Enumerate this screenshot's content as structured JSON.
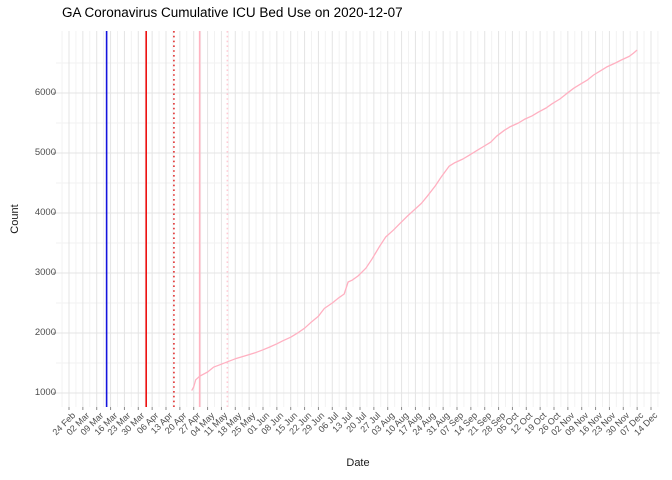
{
  "chart_data": {
    "type": "line",
    "title": "GA Coronavirus Cumulative ICU Bed Use on 2020-12-07",
    "xlabel": "Date",
    "ylabel": "Count",
    "grid": true,
    "legend": false,
    "x_range": [
      "2020-02-24",
      "2020-12-14"
    ],
    "x_tick_interval_days": 7,
    "x_tick_labels": [
      "24 Feb",
      "02 Mar",
      "09 Mar",
      "16 Mar",
      "23 Mar",
      "30 Mar",
      "06 Apr",
      "13 Apr",
      "20 Apr",
      "27 Apr",
      "04 May",
      "11 May",
      "18 May",
      "25 May",
      "01 Jun",
      "08 Jun",
      "15 Jun",
      "22 Jun",
      "29 Jun",
      "06 Jul",
      "13 Jul",
      "20 Jul",
      "27 Jul",
      "03 Aug",
      "10 Aug",
      "17 Aug",
      "24 Aug",
      "31 Aug",
      "07 Sep",
      "14 Sep",
      "21 Sep",
      "28 Sep",
      "05 Oct",
      "12 Oct",
      "19 Oct",
      "26 Oct",
      "02 Nov",
      "09 Nov",
      "16 Nov",
      "23 Nov",
      "30 Nov",
      "07 Dec",
      "14 Dec"
    ],
    "y_ticks": [
      1000,
      2000,
      3000,
      4000,
      5000,
      6000
    ],
    "y_minor_ticks": [
      1500,
      2500,
      3500,
      4500,
      5500,
      6500
    ],
    "ylim": [
      767,
      7033
    ],
    "vlines": [
      {
        "id": "vline-blue-solid",
        "date": "2020-03-14",
        "color": "#1414dd",
        "style": "solid"
      },
      {
        "id": "vline-red-solid",
        "date": "2020-04-03",
        "color": "#ee1111",
        "style": "solid"
      },
      {
        "id": "vline-red-dotted",
        "date": "2020-04-17",
        "color": "#e03030",
        "style": "dotted"
      },
      {
        "id": "vline-pink-solid",
        "date": "2020-04-30",
        "color": "#ffb3c1",
        "style": "solid"
      },
      {
        "id": "vline-pink-dotted",
        "date": "2020-05-14",
        "color": "#ffc9d3",
        "style": "dotted"
      }
    ],
    "series": [
      {
        "name": "cumulative-icu-bed-use",
        "color": "#ffb0c1",
        "points": [
          [
            "2020-04-26",
            1040
          ],
          [
            "2020-04-27",
            1100
          ],
          [
            "2020-04-28",
            1220
          ],
          [
            "2020-04-30",
            1280
          ],
          [
            "2020-05-04",
            1350
          ],
          [
            "2020-05-07",
            1430
          ],
          [
            "2020-05-11",
            1480
          ],
          [
            "2020-05-14",
            1520
          ],
          [
            "2020-05-18",
            1570
          ],
          [
            "2020-05-21",
            1600
          ],
          [
            "2020-05-25",
            1640
          ],
          [
            "2020-05-28",
            1670
          ],
          [
            "2020-06-01",
            1720
          ],
          [
            "2020-06-04",
            1760
          ],
          [
            "2020-06-08",
            1820
          ],
          [
            "2020-06-11",
            1870
          ],
          [
            "2020-06-15",
            1930
          ],
          [
            "2020-06-18",
            1990
          ],
          [
            "2020-06-22",
            2080
          ],
          [
            "2020-06-25",
            2170
          ],
          [
            "2020-06-29",
            2280
          ],
          [
            "2020-07-02",
            2410
          ],
          [
            "2020-07-06",
            2500
          ],
          [
            "2020-07-09",
            2580
          ],
          [
            "2020-07-12",
            2650
          ],
          [
            "2020-07-14",
            2850
          ],
          [
            "2020-07-16",
            2880
          ],
          [
            "2020-07-19",
            2950
          ],
          [
            "2020-07-23",
            3080
          ],
          [
            "2020-07-26",
            3230
          ],
          [
            "2020-07-30",
            3450
          ],
          [
            "2020-08-02",
            3600
          ],
          [
            "2020-08-06",
            3720
          ],
          [
            "2020-08-09",
            3820
          ],
          [
            "2020-08-13",
            3950
          ],
          [
            "2020-08-16",
            4040
          ],
          [
            "2020-08-20",
            4160
          ],
          [
            "2020-08-23",
            4280
          ],
          [
            "2020-08-27",
            4450
          ],
          [
            "2020-08-30",
            4600
          ],
          [
            "2020-09-03",
            4780
          ],
          [
            "2020-09-06",
            4840
          ],
          [
            "2020-09-10",
            4900
          ],
          [
            "2020-09-13",
            4960
          ],
          [
            "2020-09-17",
            5040
          ],
          [
            "2020-09-20",
            5100
          ],
          [
            "2020-09-24",
            5180
          ],
          [
            "2020-09-27",
            5280
          ],
          [
            "2020-10-01",
            5380
          ],
          [
            "2020-10-04",
            5440
          ],
          [
            "2020-10-08",
            5500
          ],
          [
            "2020-10-11",
            5560
          ],
          [
            "2020-10-15",
            5620
          ],
          [
            "2020-10-18",
            5680
          ],
          [
            "2020-10-22",
            5750
          ],
          [
            "2020-10-25",
            5820
          ],
          [
            "2020-10-29",
            5900
          ],
          [
            "2020-11-01",
            5980
          ],
          [
            "2020-11-05",
            6080
          ],
          [
            "2020-11-08",
            6140
          ],
          [
            "2020-11-12",
            6220
          ],
          [
            "2020-11-15",
            6300
          ],
          [
            "2020-11-19",
            6380
          ],
          [
            "2020-11-22",
            6440
          ],
          [
            "2020-11-26",
            6500
          ],
          [
            "2020-11-29",
            6550
          ],
          [
            "2020-12-03",
            6610
          ],
          [
            "2020-12-05",
            6660
          ],
          [
            "2020-12-07",
            6717
          ]
        ]
      }
    ]
  },
  "style": {
    "background": "#ffffff",
    "grid_major": "#e4e4e4",
    "grid_minor": "#f2f2f2",
    "axis_text": "#4d4d4d",
    "axis_title": "#1a1a1a",
    "title_color": "#000000",
    "tick_mark": "#8c8c8c"
  }
}
